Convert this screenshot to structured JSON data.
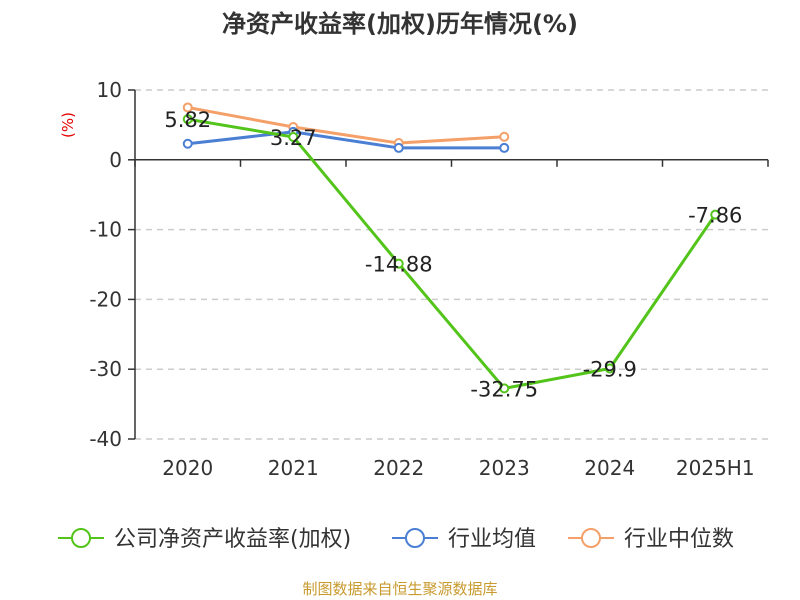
{
  "chart_data": {
    "type": "line",
    "title": "净资产收益率(加权)历年情况(%)",
    "ylabel": "(%)",
    "categories": [
      "2020",
      "2021",
      "2022",
      "2023",
      "2024",
      "2025H1"
    ],
    "ylim": [
      -40,
      10
    ],
    "yticks": [
      "10",
      "0",
      "-10",
      "-20",
      "-30",
      "-40"
    ],
    "grid": "horizontal-dashed",
    "legend_position": "bottom",
    "series": [
      {
        "name": "公司净资产收益率(加权)",
        "color": "#52c41a",
        "values": [
          5.82,
          3.27,
          -14.88,
          -32.75,
          -29.9,
          -7.86
        ],
        "labels": [
          "5.82",
          "3.27",
          "-14.88",
          "-32.75",
          "-29.9",
          "-7.86"
        ]
      },
      {
        "name": "行业均值",
        "color": "#4a7fd4",
        "values": [
          2.3,
          4.0,
          1.7,
          1.7,
          null,
          null
        ]
      },
      {
        "name": "行业中位数",
        "color": "#f4a068",
        "values": [
          7.5,
          4.7,
          2.4,
          3.3,
          null,
          null
        ]
      }
    ],
    "source": "制图数据来自恒生聚源数据库"
  }
}
